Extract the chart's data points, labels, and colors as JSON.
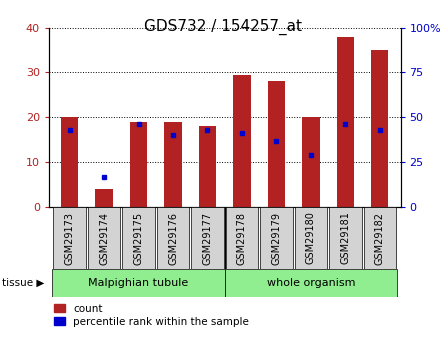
{
  "title": "GDS732 / 154257_at",
  "samples": [
    "GSM29173",
    "GSM29174",
    "GSM29175",
    "GSM29176",
    "GSM29177",
    "GSM29178",
    "GSM29179",
    "GSM29180",
    "GSM29181",
    "GSM29182"
  ],
  "counts": [
    20,
    4,
    19,
    19,
    18,
    29.5,
    28,
    20,
    38,
    35
  ],
  "percentiles": [
    43,
    17,
    46,
    40,
    43,
    41,
    37,
    29,
    46,
    43
  ],
  "left_ylim": [
    0,
    40
  ],
  "right_ylim": [
    0,
    100
  ],
  "left_yticks": [
    0,
    10,
    20,
    30,
    40
  ],
  "right_yticks": [
    0,
    25,
    50,
    75,
    100
  ],
  "right_yticklabels": [
    "0",
    "25",
    "50",
    "75",
    "100%"
  ],
  "bar_color": "#b22222",
  "pct_color": "#0000cc",
  "tissue_groups": [
    {
      "label": "Malpighian tubule",
      "start": 0,
      "end": 5
    },
    {
      "label": "whole organism",
      "start": 5,
      "end": 10
    }
  ],
  "legend_count": "count",
  "legend_pct": "percentile rank within the sample",
  "bar_width": 0.5,
  "tick_label_size": 7,
  "title_fontsize": 11,
  "tissue_bg_color": "#90ee90",
  "sample_bg_color": "#d3d3d3",
  "bg_white": "#ffffff"
}
